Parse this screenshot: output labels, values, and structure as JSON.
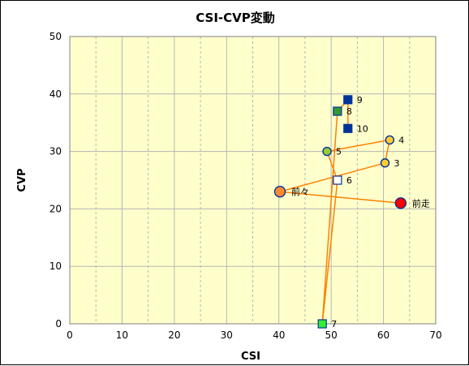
{
  "chart_data": {
    "type": "scatter",
    "title": "CSI-CVP変動",
    "xlabel": "CSI",
    "ylabel": "CVP",
    "xlim": [
      0,
      70
    ],
    "ylim": [
      0,
      50
    ],
    "xticks": [
      0,
      10,
      20,
      30,
      40,
      50,
      60,
      70
    ],
    "yticks": [
      0,
      10,
      20,
      30,
      40,
      50
    ],
    "grid": true,
    "plot_background": "#ffffcc",
    "line_color": "#ff8000",
    "path_order": [
      "10",
      "9",
      "8",
      "7",
      "6",
      "5",
      "4",
      "3",
      "前々",
      "前走"
    ],
    "points": [
      {
        "label": "10",
        "x": 53.2,
        "y": 34.0,
        "shape": "square",
        "fill": "#003399",
        "edge": "#003399"
      },
      {
        "label": "9",
        "x": 53.2,
        "y": 39.0,
        "shape": "square",
        "fill": "#003399",
        "edge": "#003399"
      },
      {
        "label": "8",
        "x": 51.2,
        "y": 37.0,
        "shape": "square",
        "fill": "#339933",
        "edge": "#003399"
      },
      {
        "label": "7",
        "x": 48.3,
        "y": 0.0,
        "shape": "square",
        "fill": "#33ee33",
        "edge": "#003399"
      },
      {
        "label": "6",
        "x": 51.2,
        "y": 25.0,
        "shape": "square",
        "fill": "#ffffff",
        "edge": "#003399"
      },
      {
        "label": "5",
        "x": 49.2,
        "y": 30.0,
        "shape": "circle",
        "fill": "#99cc33",
        "edge": "#003399"
      },
      {
        "label": "4",
        "x": 61.2,
        "y": 32.0,
        "shape": "circle",
        "fill": "#ffcc33",
        "edge": "#003399"
      },
      {
        "label": "3",
        "x": 60.3,
        "y": 28.0,
        "shape": "circle",
        "fill": "#ffcc33",
        "edge": "#003399"
      },
      {
        "label": "前々",
        "x": 40.2,
        "y": 23.0,
        "shape": "circle-large",
        "fill": "#ff8833",
        "edge": "#003399"
      },
      {
        "label": "前走",
        "x": 63.3,
        "y": 21.0,
        "shape": "circle-large",
        "fill": "#ff0000",
        "edge": "#003399"
      }
    ]
  }
}
